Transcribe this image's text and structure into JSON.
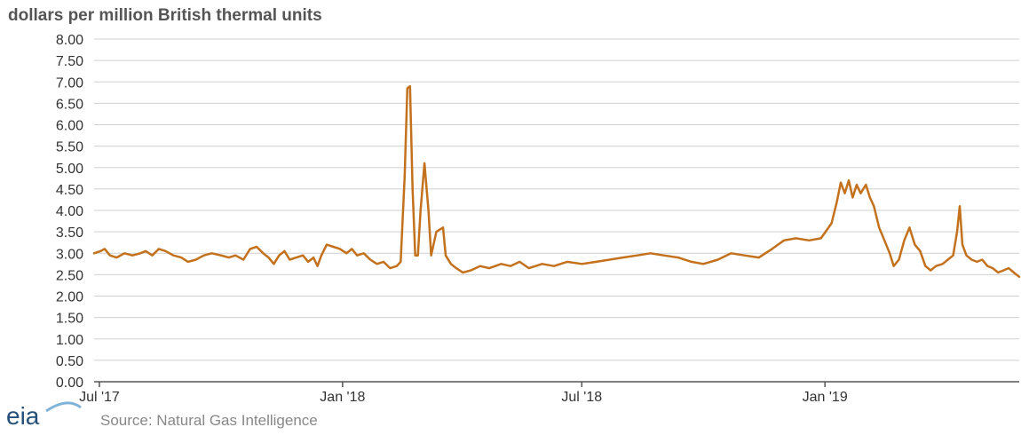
{
  "chart_data": {
    "type": "line",
    "subtitle": "dollars per million British thermal units",
    "source": "Source: Natural Gas Intelligence",
    "logo_text": "eia",
    "ylim": [
      0,
      8
    ],
    "yticks": [
      "8.00",
      "7.50",
      "7.00",
      "6.50",
      "6.00",
      "5.50",
      "5.00",
      "4.50",
      "4.00",
      "3.50",
      "3.00",
      "2.50",
      "2.00",
      "1.50",
      "1.00",
      "0.50",
      "0.00"
    ],
    "xlim": [
      "2017-06-27",
      "2019-05-28"
    ],
    "xticks": [
      {
        "label": "Jul '17",
        "date": "2017-07-01"
      },
      {
        "label": "Jan '18",
        "date": "2018-01-01"
      },
      {
        "label": "Jul '18",
        "date": "2018-07-01"
      },
      {
        "label": "Jan '19",
        "date": "2019-01-01"
      }
    ],
    "grid": true,
    "line_color": "#c3711d",
    "series": [
      {
        "points": [
          [
            "2017-06-27",
            3.0
          ],
          [
            "2017-07-02",
            3.05
          ],
          [
            "2017-07-05",
            3.1
          ],
          [
            "2017-07-09",
            2.95
          ],
          [
            "2017-07-14",
            2.9
          ],
          [
            "2017-07-20",
            3.0
          ],
          [
            "2017-07-26",
            2.95
          ],
          [
            "2017-08-01",
            3.0
          ],
          [
            "2017-08-05",
            3.05
          ],
          [
            "2017-08-10",
            2.95
          ],
          [
            "2017-08-15",
            3.1
          ],
          [
            "2017-08-20",
            3.05
          ],
          [
            "2017-08-26",
            2.95
          ],
          [
            "2017-09-01",
            2.9
          ],
          [
            "2017-09-06",
            2.8
          ],
          [
            "2017-09-12",
            2.85
          ],
          [
            "2017-09-18",
            2.95
          ],
          [
            "2017-09-24",
            3.0
          ],
          [
            "2017-10-01",
            2.95
          ],
          [
            "2017-10-07",
            2.9
          ],
          [
            "2017-10-12",
            2.95
          ],
          [
            "2017-10-18",
            2.85
          ],
          [
            "2017-10-23",
            3.1
          ],
          [
            "2017-10-28",
            3.15
          ],
          [
            "2017-11-02",
            3.0
          ],
          [
            "2017-11-06",
            2.9
          ],
          [
            "2017-11-10",
            2.75
          ],
          [
            "2017-11-14",
            2.95
          ],
          [
            "2017-11-18",
            3.05
          ],
          [
            "2017-11-22",
            2.85
          ],
          [
            "2017-11-27",
            2.9
          ],
          [
            "2017-12-02",
            2.95
          ],
          [
            "2017-12-06",
            2.8
          ],
          [
            "2017-12-10",
            2.9
          ],
          [
            "2017-12-13",
            2.7
          ],
          [
            "2017-12-16",
            2.95
          ],
          [
            "2017-12-20",
            3.2
          ],
          [
            "2017-12-25",
            3.15
          ],
          [
            "2017-12-30",
            3.1
          ],
          [
            "2018-01-04",
            3.0
          ],
          [
            "2018-01-08",
            3.1
          ],
          [
            "2018-01-12",
            2.95
          ],
          [
            "2018-01-17",
            3.0
          ],
          [
            "2018-01-22",
            2.85
          ],
          [
            "2018-01-27",
            2.75
          ],
          [
            "2018-02-01",
            2.8
          ],
          [
            "2018-02-06",
            2.65
          ],
          [
            "2018-02-11",
            2.7
          ],
          [
            "2018-02-14",
            2.8
          ],
          [
            "2018-02-17",
            4.8
          ],
          [
            "2018-02-19",
            6.85
          ],
          [
            "2018-02-21",
            6.9
          ],
          [
            "2018-02-23",
            4.5
          ],
          [
            "2018-02-25",
            2.95
          ],
          [
            "2018-02-27",
            2.95
          ],
          [
            "2018-03-01",
            4.0
          ],
          [
            "2018-03-04",
            5.1
          ],
          [
            "2018-03-07",
            4.0
          ],
          [
            "2018-03-09",
            2.95
          ],
          [
            "2018-03-13",
            3.5
          ],
          [
            "2018-03-18",
            3.6
          ],
          [
            "2018-03-20",
            2.95
          ],
          [
            "2018-03-24",
            2.75
          ],
          [
            "2018-03-28",
            2.65
          ],
          [
            "2018-04-02",
            2.55
          ],
          [
            "2018-04-08",
            2.6
          ],
          [
            "2018-04-15",
            2.7
          ],
          [
            "2018-04-22",
            2.65
          ],
          [
            "2018-05-01",
            2.75
          ],
          [
            "2018-05-08",
            2.7
          ],
          [
            "2018-05-15",
            2.8
          ],
          [
            "2018-05-22",
            2.65
          ],
          [
            "2018-06-01",
            2.75
          ],
          [
            "2018-06-10",
            2.7
          ],
          [
            "2018-06-20",
            2.8
          ],
          [
            "2018-07-01",
            2.75
          ],
          [
            "2018-07-12",
            2.8
          ],
          [
            "2018-07-22",
            2.85
          ],
          [
            "2018-08-01",
            2.9
          ],
          [
            "2018-08-12",
            2.95
          ],
          [
            "2018-08-22",
            3.0
          ],
          [
            "2018-09-01",
            2.95
          ],
          [
            "2018-09-12",
            2.9
          ],
          [
            "2018-09-22",
            2.8
          ],
          [
            "2018-10-01",
            2.75
          ],
          [
            "2018-10-12",
            2.85
          ],
          [
            "2018-10-22",
            3.0
          ],
          [
            "2018-11-01",
            2.95
          ],
          [
            "2018-11-12",
            2.9
          ],
          [
            "2018-11-22",
            3.1
          ],
          [
            "2018-12-01",
            3.3
          ],
          [
            "2018-12-10",
            3.35
          ],
          [
            "2018-12-20",
            3.3
          ],
          [
            "2018-12-29",
            3.35
          ],
          [
            "2019-01-06",
            3.7
          ],
          [
            "2019-01-10",
            4.2
          ],
          [
            "2019-01-13",
            4.65
          ],
          [
            "2019-01-16",
            4.4
          ],
          [
            "2019-01-19",
            4.7
          ],
          [
            "2019-01-22",
            4.3
          ],
          [
            "2019-01-25",
            4.6
          ],
          [
            "2019-01-28",
            4.4
          ],
          [
            "2019-02-01",
            4.6
          ],
          [
            "2019-02-04",
            4.3
          ],
          [
            "2019-02-07",
            4.1
          ],
          [
            "2019-02-11",
            3.6
          ],
          [
            "2019-02-15",
            3.3
          ],
          [
            "2019-02-19",
            3.0
          ],
          [
            "2019-02-22",
            2.7
          ],
          [
            "2019-02-26",
            2.85
          ],
          [
            "2019-03-02",
            3.3
          ],
          [
            "2019-03-06",
            3.6
          ],
          [
            "2019-03-10",
            3.2
          ],
          [
            "2019-03-14",
            3.05
          ],
          [
            "2019-03-18",
            2.7
          ],
          [
            "2019-03-22",
            2.6
          ],
          [
            "2019-03-26",
            2.7
          ],
          [
            "2019-03-31",
            2.75
          ],
          [
            "2019-04-04",
            2.85
          ],
          [
            "2019-04-08",
            2.95
          ],
          [
            "2019-04-11",
            3.5
          ],
          [
            "2019-04-13",
            4.1
          ],
          [
            "2019-04-15",
            3.2
          ],
          [
            "2019-04-18",
            2.95
          ],
          [
            "2019-04-22",
            2.85
          ],
          [
            "2019-04-26",
            2.8
          ],
          [
            "2019-04-30",
            2.85
          ],
          [
            "2019-05-04",
            2.7
          ],
          [
            "2019-05-08",
            2.65
          ],
          [
            "2019-05-12",
            2.55
          ],
          [
            "2019-05-16",
            2.6
          ],
          [
            "2019-05-20",
            2.65
          ],
          [
            "2019-05-24",
            2.55
          ],
          [
            "2019-05-28",
            2.45
          ]
        ]
      }
    ]
  }
}
